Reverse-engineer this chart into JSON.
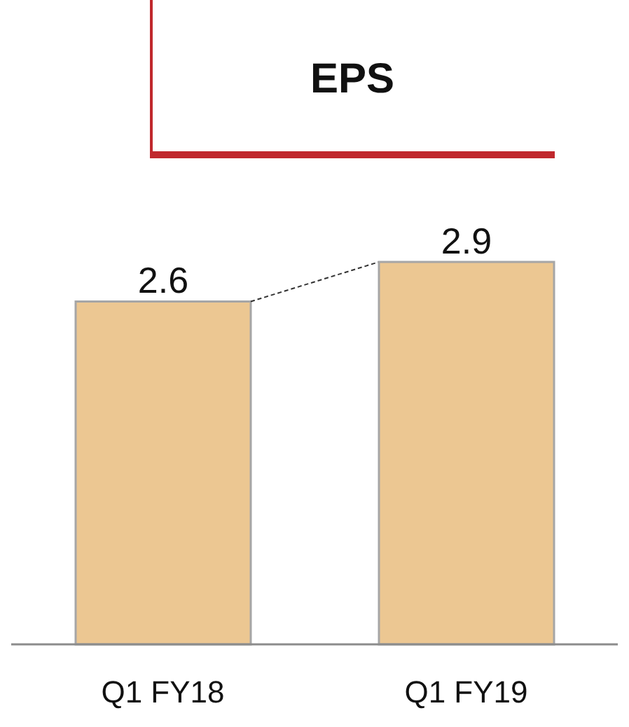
{
  "chart_data": {
    "type": "bar",
    "title": "EPS",
    "categories": [
      "Q1 FY18",
      "Q1 FY19"
    ],
    "values": [
      2.6,
      2.9
    ],
    "color": "#ecc792",
    "data_labels": true
  }
}
